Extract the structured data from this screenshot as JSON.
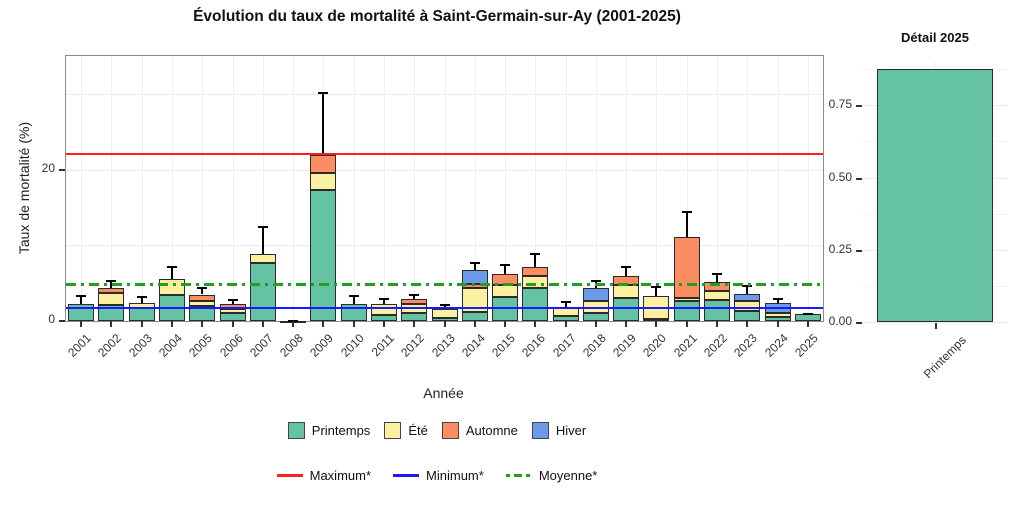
{
  "title": "Évolution du taux de mortalité à Saint-Germain-sur-Ay (2001-2025)",
  "colors": {
    "printemps": "#66C2A5",
    "ete": "#FBF0A0",
    "automne": "#FC8D62",
    "hiver": "#6B9AE8",
    "maximum_line": "#FF1F1F",
    "minimum_line": "#1A1AFF",
    "moyenne_line": "#1FA01F"
  },
  "chart_data": [
    {
      "type": "bar",
      "stacked": true,
      "title": "Évolution du taux de mortalité à Saint-Germain-sur-Ay (2001-2025)",
      "xlabel": "Année",
      "ylabel": "Taux de mortalité (%)",
      "ylim": [
        0,
        35
      ],
      "yticks": [
        0,
        20
      ],
      "grid_major_y": [
        10,
        20,
        30
      ],
      "legend_position": "bottom",
      "categories": [
        "2001",
        "2002",
        "2003",
        "2004",
        "2005",
        "2006",
        "2007",
        "2008",
        "2009",
        "2010",
        "2011",
        "2012",
        "2013",
        "2014",
        "2015",
        "2016",
        "2017",
        "2018",
        "2019",
        "2020",
        "2021",
        "2022",
        "2023",
        "2024",
        "2025"
      ],
      "series": [
        {
          "name": "Printemps",
          "color_key": "printemps",
          "values": [
            2.2,
            2.1,
            1.75,
            3.4,
            2.0,
            1.1,
            7.7,
            0.05,
            17.3,
            2.2,
            0.75,
            1.1,
            0.4,
            1.2,
            3.2,
            4.4,
            0.65,
            1.0,
            3.0,
            0.3,
            2.6,
            2.8,
            1.3,
            0.5,
            0.88
          ]
        },
        {
          "name": "Été",
          "color_key": "ete",
          "values": [
            0,
            1.6,
            0.65,
            2.2,
            0.7,
            0.55,
            1.2,
            0,
            2.3,
            0,
            1.45,
            1.1,
            1.2,
            3.2,
            1.5,
            1.5,
            1.15,
            1.7,
            1.8,
            3.0,
            0.5,
            1.1,
            1.3,
            0.5,
            0
          ]
        },
        {
          "name": "Automne",
          "color_key": "automne",
          "values": [
            0,
            0.6,
            0,
            0,
            0.8,
            0.55,
            0,
            0,
            2.3,
            0,
            0,
            0.7,
            0,
            0.5,
            1.5,
            1.2,
            0,
            0,
            1.2,
            0,
            8.0,
            1.2,
            0,
            0,
            0
          ]
        },
        {
          "name": "Hiver",
          "color_key": "hiver",
          "values": [
            0,
            0,
            0,
            0,
            0,
            0,
            0,
            0,
            0,
            0,
            0,
            0,
            0,
            1.8,
            0,
            0,
            0,
            1.7,
            0,
            0,
            0,
            0,
            1.0,
            1.4,
            0
          ]
        }
      ],
      "error_bar_tops": [
        3.5,
        5.4,
        3.3,
        7.2,
        4.5,
        2.9,
        12.6,
        0.15,
        30.3,
        3.5,
        3.1,
        3.6,
        2.3,
        7.8,
        7.5,
        9.0,
        2.7,
        5.4,
        7.2,
        4.6,
        14.5,
        6.4,
        4.8,
        3.1,
        1.05
      ],
      "reference_lines": [
        {
          "label": "Maximum*",
          "value": 22.0,
          "style": "solid",
          "color_key": "maximum_line"
        },
        {
          "label": "Minimum*",
          "value": 1.75,
          "style": "solid",
          "color_key": "minimum_line"
        },
        {
          "label": "Moyenne*",
          "value": 4.95,
          "style": "dashdot",
          "color_key": "moyenne_line"
        }
      ]
    },
    {
      "type": "bar",
      "title": "Détail 2025",
      "categories": [
        "Printemps"
      ],
      "values": [
        0.875
      ],
      "color_key": "printemps",
      "ylim": [
        0,
        0.9
      ],
      "yticks": [
        0,
        0.25,
        0.5,
        0.75
      ],
      "ytick_labels": [
        "0.00",
        "0.25",
        "0.50",
        "0.75"
      ],
      "grid_minor_y": [
        0.125,
        0.375,
        0.625,
        0.875
      ]
    }
  ],
  "legend": {
    "seasons": [
      {
        "label": "Printemps",
        "color_key": "printemps"
      },
      {
        "label": "Été",
        "color_key": "ete"
      },
      {
        "label": "Automne",
        "color_key": "automne"
      },
      {
        "label": "Hiver",
        "color_key": "hiver"
      }
    ],
    "lines": [
      {
        "label": "Maximum*",
        "color_key": "maximum_line",
        "style": "solid"
      },
      {
        "label": "Minimum*",
        "color_key": "minimum_line",
        "style": "solid"
      },
      {
        "label": "Moyenne*",
        "color_key": "moyenne_line",
        "style": "dashdot"
      }
    ]
  }
}
